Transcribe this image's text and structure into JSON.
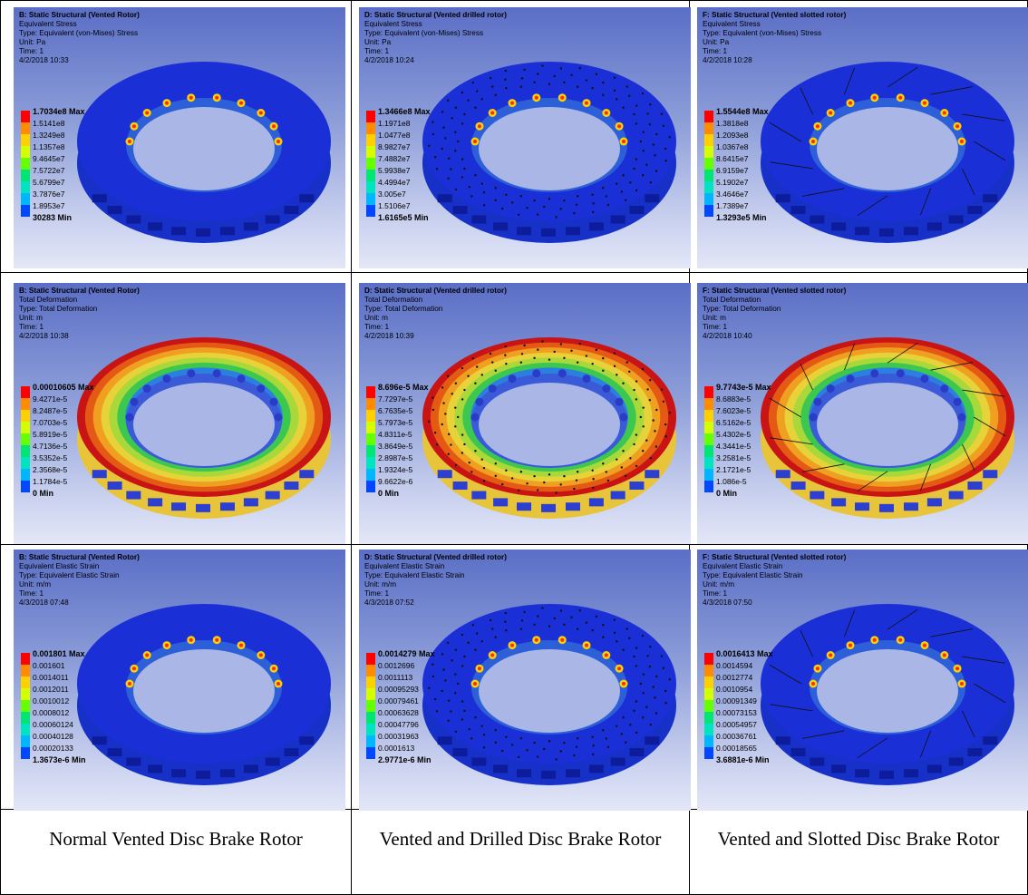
{
  "legend_colors": [
    "#ff0000",
    "#ff8c00",
    "#ffd000",
    "#d4ff00",
    "#66ff00",
    "#00e676",
    "#00e5c0",
    "#00b7ff",
    "#0047ff"
  ],
  "contour_colors": {
    "stress": [
      "#1a2fd6",
      "#3d6ae8",
      "#2dc3a3",
      "#8ce85a",
      "#f5d20a",
      "#ff8c00",
      "#ff2a00"
    ],
    "deform": [
      "#c81414",
      "#e45a14",
      "#f0a020",
      "#e8d23a",
      "#a8d83a",
      "#3cc850",
      "#2a7fe0"
    ]
  },
  "panels": [
    {
      "title": "B: Static Structural (Vented Rotor)",
      "result": "Equivalent Stress",
      "type": "Type: Equivalent (von-Mises) Stress",
      "unit": "Unit: Pa",
      "time": "Time: 1",
      "date": "4/2/2018 10:33",
      "labels": [
        "1.7034e8 Max",
        "1.5141e8",
        "1.3249e8",
        "1.1357e8",
        "9.4645e7",
        "7.5722e7",
        "5.6799e7",
        "3.7876e7",
        "1.8953e7",
        "30283 Min"
      ],
      "kind": "stress",
      "holes": "none"
    },
    {
      "title": "D: Static Structural (Vented drilled rotor)",
      "result": "Equivalent Stress",
      "type": "Type: Equivalent (von-Mises) Stress",
      "unit": "Unit: Pa",
      "time": "Time: 1",
      "date": "4/2/2018 10:24",
      "labels": [
        "1.3466e8 Max",
        "1.1971e8",
        "1.0477e8",
        "8.9827e7",
        "7.4882e7",
        "5.9938e7",
        "4.4994e7",
        "3.005e7",
        "1.5106e7",
        "1.6165e5 Min"
      ],
      "kind": "stress",
      "holes": "drilled"
    },
    {
      "title": "F: Static Structural (Vented slotted rotor)",
      "result": "Equivalent Stress",
      "type": "Type: Equivalent (von-Mises) Stress",
      "unit": "Unit: Pa",
      "time": "Time: 1",
      "date": "4/2/2018 10:28",
      "labels": [
        "1.5544e8 Max",
        "1.3818e8",
        "1.2093e8",
        "1.0367e8",
        "8.6415e7",
        "6.9159e7",
        "5.1902e7",
        "3.4646e7",
        "1.7389e7",
        "1.3293e5 Min"
      ],
      "kind": "stress",
      "holes": "slotted"
    },
    {
      "title": "B: Static Structural (Vented Rotor)",
      "result": "Total Deformation",
      "type": "Type: Total Deformation",
      "unit": "Unit: m",
      "time": "Time: 1",
      "date": "4/2/2018 10:38",
      "labels": [
        "0.00010605 Max",
        "9.4271e-5",
        "8.2487e-5",
        "7.0703e-5",
        "5.8919e-5",
        "4.7136e-5",
        "3.5352e-5",
        "2.3568e-5",
        "1.1784e-5",
        "0 Min"
      ],
      "kind": "deform",
      "holes": "none"
    },
    {
      "title": "D: Static Structural (Vented drilled rotor)",
      "result": "Total Deformation",
      "type": "Type: Total Deformation",
      "unit": "Unit: m",
      "time": "Time: 1",
      "date": "4/2/2018 10:39",
      "labels": [
        "8.696e-5 Max",
        "7.7297e-5",
        "6.7635e-5",
        "5.7973e-5",
        "4.8311e-5",
        "3.8649e-5",
        "2.8987e-5",
        "1.9324e-5",
        "9.6622e-6",
        "0 Min"
      ],
      "kind": "deform",
      "holes": "drilled"
    },
    {
      "title": "F: Static Structural (Vented slotted rotor)",
      "result": "Total Deformation",
      "type": "Type: Total Deformation",
      "unit": "Unit: m",
      "time": "Time: 1",
      "date": "4/2/2018 10:40",
      "labels": [
        "9.7743e-5 Max",
        "8.6883e-5",
        "7.6023e-5",
        "6.5162e-5",
        "5.4302e-5",
        "4.3441e-5",
        "3.2581e-5",
        "2.1721e-5",
        "1.086e-5",
        "0 Min"
      ],
      "kind": "deform",
      "holes": "slotted"
    },
    {
      "title": "B: Static Structural (Vented Rotor)",
      "result": "Equivalent Elastic Strain",
      "type": "Type: Equivalent Elastic Strain",
      "unit": "Unit: m/m",
      "time": "Time: 1",
      "date": "4/3/2018 07:48",
      "labels": [
        "0.001801 Max",
        "0.001601",
        "0.0014011",
        "0.0012011",
        "0.0010012",
        "0.0008012",
        "0.00060124",
        "0.00040128",
        "0.00020133",
        "1.3673e-6 Min"
      ],
      "kind": "stress",
      "holes": "none"
    },
    {
      "title": "D: Static Structural (Vented drilled rotor)",
      "result": "Equivalent Elastic Strain",
      "type": "Type: Equivalent Elastic Strain",
      "unit": "Unit: m/m",
      "time": "Time: 1",
      "date": "4/3/2018 07:52",
      "labels": [
        "0.0014279 Max",
        "0.0012696",
        "0.0011113",
        "0.00095293",
        "0.00079461",
        "0.00063628",
        "0.00047796",
        "0.00031963",
        "0.0001613",
        "2.9771e-6 Min"
      ],
      "kind": "stress",
      "holes": "drilled"
    },
    {
      "title": "F: Static Structural (Vented slotted rotor)",
      "result": "Equivalent Elastic Strain",
      "type": "Type: Equivalent Elastic Strain",
      "unit": "Unit: m/m",
      "time": "Time: 1",
      "date": "4/3/2018 07:50",
      "labels": [
        "0.0016413 Max",
        "0.0014594",
        "0.0012774",
        "0.0010954",
        "0.00091349",
        "0.00073153",
        "0.00054957",
        "0.00036761",
        "0.00018565",
        "3.6881e-6 Min"
      ],
      "kind": "stress",
      "holes": "slotted"
    }
  ],
  "captions": [
    "Normal Vented Disc Brake Rotor",
    "Vented and Drilled Disc Brake Rotor",
    "Vented and Slotted Disc Brake Rotor"
  ]
}
